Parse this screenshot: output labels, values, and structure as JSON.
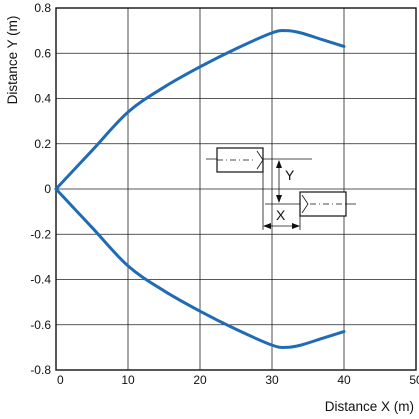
{
  "chart_data": {
    "type": "line",
    "xlabel": "Distance X (m)",
    "ylabel": "Distance Y (m)",
    "xlim": [
      0,
      50
    ],
    "ylim": [
      -0.8,
      0.8
    ],
    "x_ticks": [
      "0",
      "10",
      "20",
      "30",
      "40",
      "50"
    ],
    "y_ticks": [
      "0.8",
      "0.6",
      "0.4",
      "0.2",
      "0",
      "-0.2",
      "-0.4",
      "-0.6",
      "-0.8"
    ],
    "grid": true,
    "series_color": "#1f6bb5",
    "series": [
      {
        "x": [
          0,
          5,
          10,
          15,
          20,
          25,
          30,
          32,
          34,
          37,
          40
        ],
        "y": [
          0,
          0.17,
          0.34,
          0.45,
          0.54,
          0.62,
          0.69,
          0.7,
          0.69,
          0.66,
          0.63
        ]
      },
      {
        "x": [
          0,
          5,
          10,
          15,
          20,
          25,
          30,
          32,
          34,
          37,
          40
        ],
        "y": [
          0,
          -0.17,
          -0.34,
          -0.45,
          -0.54,
          -0.62,
          -0.69,
          -0.7,
          -0.69,
          -0.66,
          -0.63
        ]
      }
    ],
    "inset": {
      "label_y": "Y",
      "label_x": "X"
    }
  }
}
